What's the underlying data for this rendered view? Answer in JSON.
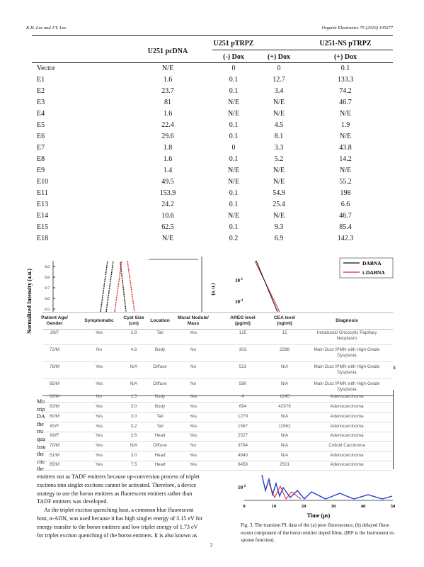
{
  "header": {
    "authors": "K.H. Lee and J.Y. Lee",
    "journal": "Organic Electronics 75 (2019) 105377"
  },
  "table1": {
    "group_headers": [
      "U251 pcDNA",
      "U251 pTRPZ",
      "U251-NS pTRPZ"
    ],
    "sub_headers": [
      "(-) Dox",
      "(+) Dox",
      "(+) Dox"
    ],
    "rows": [
      [
        "Vector",
        "N/E",
        "0",
        "0",
        "0.1"
      ],
      [
        "E1",
        "1.6",
        "0.1",
        "12.7",
        "133.3"
      ],
      [
        "E2",
        "23.7",
        "0.1",
        "3.4",
        "74.2"
      ],
      [
        "E3",
        "81",
        "N/E",
        "N/E",
        "46.7"
      ],
      [
        "E4",
        "1.6",
        "N/E",
        "N/E",
        "N/E"
      ],
      [
        "E5",
        "22.4",
        "0.1",
        "4.5",
        "1.9"
      ],
      [
        "E6",
        "29.6",
        "0.1",
        "8.1",
        "N/E"
      ],
      [
        "E7",
        "1.8",
        "0",
        "3.3",
        "43.8"
      ],
      [
        "E8",
        "1.6",
        "0.1",
        "5.2",
        "14.2"
      ],
      [
        "E9",
        "1.4",
        "N/E",
        "N/E",
        "N/E"
      ],
      [
        "E10",
        "49.5",
        "N/E",
        "N/E",
        "55.2"
      ],
      [
        "E11",
        "153.9",
        "0.1",
        "54.9",
        "198"
      ],
      [
        "E13",
        "24.2",
        "0.1",
        "25.4",
        "6.6"
      ],
      [
        "E14",
        "10.6",
        "N/E",
        "N/E",
        "46.7"
      ],
      [
        "E15",
        "62.5",
        "0.1",
        "9.3",
        "85.4"
      ],
      [
        "E18",
        "N/E",
        "0.2",
        "6.9",
        "142.3"
      ]
    ]
  },
  "figure_top": {
    "ylabel": "Normalized Intensity (a.u.)",
    "yticks": [
      "0.9",
      "0.8",
      "0.7",
      "0.6",
      "0.5"
    ],
    "mid_ylabel": "(a. u.)",
    "mid_ticks": [
      "10",
      "10"
    ],
    "mid_tick_exps": [
      "-1",
      "-2"
    ],
    "legend": [
      "DABNA",
      "t-DABNA"
    ],
    "right_tick": "0.5"
  },
  "table2": {
    "headers": [
      [
        "Patient Age/",
        "Gender"
      ],
      [
        "Symptomatic"
      ],
      [
        "Cyst Size",
        "(cm)"
      ],
      [
        "Location"
      ],
      [
        "Mural Nodule/",
        "Mass"
      ],
      [
        "AREG level",
        "(pg/ml)"
      ],
      [
        "CEA level",
        "(ng/ml)"
      ],
      [
        "Diagnosis"
      ]
    ],
    "rows": [
      [
        "39/F",
        "Yes",
        "2.8",
        "Tail",
        "Yes",
        "125",
        "15",
        [
          "Intraductal Oncocytic Papillary",
          "Neoplasm"
        ]
      ],
      [
        "72/M",
        "No",
        "4.6",
        "Body",
        "No",
        "303",
        "2298",
        [
          "Main Duct IPMN with High-Grade",
          "Dysplasia"
        ]
      ],
      [
        "78/M",
        "Yes",
        "N/A",
        "Diffuse",
        "No",
        "523",
        "N/A",
        [
          "Main Duct IPMN with High-Grade",
          "Dysplasia"
        ]
      ],
      [
        "65/M",
        "Yes",
        "N/A",
        "Diffuse",
        "No",
        "580",
        "N/A",
        [
          "Main Duct IPMN with High-Grade",
          "Dysplasia"
        ]
      ],
      [
        "60/M",
        "No",
        "1.5",
        "Body",
        "Yes",
        "4",
        "1245",
        [
          "Adenocarcinoma"
        ]
      ],
      [
        "83/M",
        "Yes",
        "3.0",
        "Body",
        "Yes",
        "694",
        "42979",
        [
          "Adenocarcinoma"
        ]
      ],
      [
        "60/M",
        "Yes",
        "3.0",
        "Tail",
        "Yes",
        "1279",
        "N/A",
        [
          "Adenocarcinoma"
        ]
      ],
      [
        "60/F",
        "Yes",
        "3.2",
        "Tail",
        "Yes",
        "1567",
        "11962",
        [
          "Adenocarcinoma"
        ]
      ],
      [
        "66/F",
        "Yes",
        "2.6",
        "Head",
        "Yes",
        "2527",
        "N/A",
        [
          "Adenocarcinoma"
        ]
      ],
      [
        "70/M",
        "Yes",
        "N/A",
        "Diffuse",
        "No",
        "3794",
        "N/A",
        [
          "Colloid Carcinoma"
        ]
      ],
      [
        "51/M",
        "Yes",
        "3.0",
        "Head",
        "Yes",
        "4940",
        "N/A",
        [
          "Adenocarcinoma"
        ]
      ],
      [
        "65/M",
        "Yes",
        "7.5",
        "Head",
        "Yes",
        "6458",
        "2501",
        [
          "Adenocarcinoma"
        ]
      ]
    ]
  },
  "left_fragments": [
    "Mo",
    "trip",
    "DA",
    "the",
    "tru",
    "qua",
    "issu",
    "the",
    "cite",
    "the"
  ],
  "paragraph": [
    "emitters not as TADF emitters because up-conversion process of triplet",
    "excitons into singlet excitons cannot be activated. Therefore, a device",
    "strategy to use the boron emitters as fluorescent emitters rather than",
    "TADF emitters was developed.",
    "As the triplet exciton quenching host, a common blue fluorescent",
    "host, α-ADN, was used because it has high singlet energy of 3.15 eV for",
    "energy transfer to the boron emitters and low triplet energy of 1.73 eV",
    "for triplet exciton quenching of the boron emitters. It is also known as"
  ],
  "figure_bottom": {
    "ytick": "10",
    "ytick_exp": "-2",
    "xticks": [
      "0",
      "10",
      "20",
      "30",
      "40",
      "50"
    ],
    "xlabel": "Time (μs)"
  },
  "caption": [
    "Fig. 3. The transient PL data of the (a) pure fluorescence, (b) delayed fluor-",
    "escent component of the boron emitter doped films. (IRF is the Instrument re-",
    "sponse function)."
  ],
  "page_number": "2"
}
